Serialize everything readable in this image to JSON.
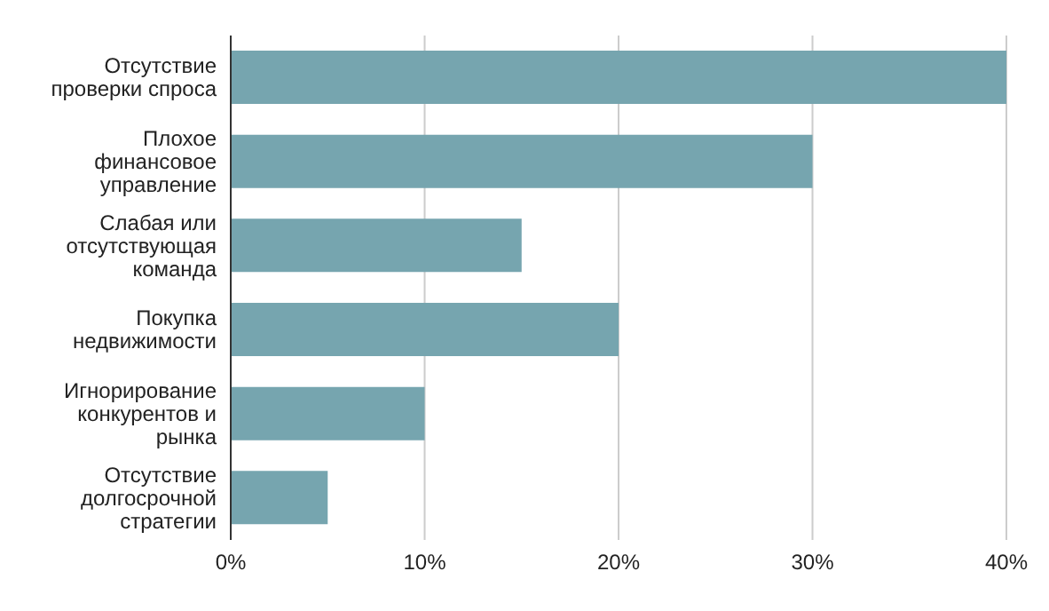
{
  "chart_data": {
    "type": "bar",
    "orientation": "horizontal",
    "categories": [
      "Отсутствие проверки спроса",
      "Плохое финансовое управление",
      "Слабая или отсутствующая команда",
      "Покупка недвижимости",
      "Игнорирование конкурентов и рынка",
      "Отсутствие долгосрочной стратегии"
    ],
    "values": [
      40,
      30,
      15,
      20,
      10,
      5
    ],
    "color": "#76a5af",
    "xlim": [
      0,
      40
    ],
    "xticks": [
      {
        "value": 0,
        "label": "0%"
      },
      {
        "value": 10,
        "label": "10%"
      },
      {
        "value": 20,
        "label": "20%"
      },
      {
        "value": 30,
        "label": "30%"
      },
      {
        "value": 40,
        "label": "40%"
      }
    ],
    "grid": "x"
  }
}
